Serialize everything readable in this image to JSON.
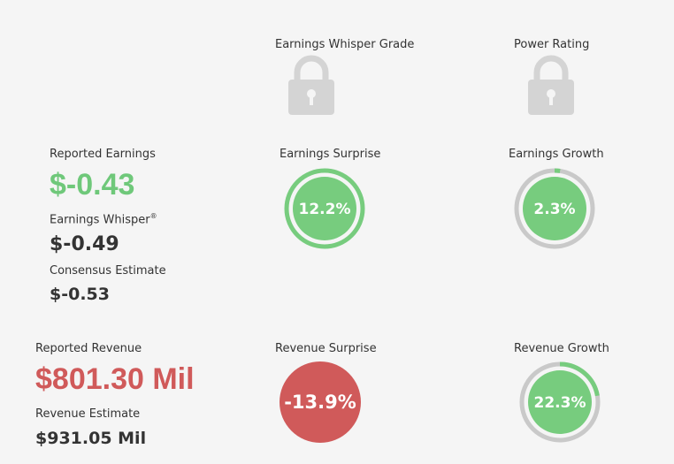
{
  "grades": {
    "whisper_grade_label": "Earnings Whisper Grade",
    "power_rating_label": "Power Rating",
    "lock_icon": "lock-icon"
  },
  "earnings": {
    "reported_label": "Reported Earnings",
    "reported_value": "$-0.43",
    "whisper_label": "Earnings Whisper",
    "whisper_sup": "®",
    "whisper_value": "$-0.49",
    "consensus_label": "Consensus Estimate",
    "consensus_value": "$-0.53",
    "surprise_label": "Earnings Surprise",
    "surprise_value": "12.2%",
    "growth_label": "Earnings Growth",
    "growth_value": "2.3%"
  },
  "revenue": {
    "reported_label": "Reported Revenue",
    "reported_value": "$801.30 Mil",
    "estimate_label": "Revenue Estimate",
    "estimate_value": "$931.05 Mil",
    "surprise_label": "Revenue Surprise",
    "surprise_value": "-13.9%",
    "growth_label": "Revenue Growth",
    "growth_value": "22.3%"
  },
  "colors": {
    "green": "#77cc7e",
    "red": "#d05a5a",
    "ring_gray": "#c9c9c9",
    "lock_gray": "#d4d4d4"
  },
  "rings": {
    "earnings_surprise_fraction": 1.0,
    "earnings_growth_fraction": 0.023,
    "revenue_growth_fraction": 0.223
  }
}
